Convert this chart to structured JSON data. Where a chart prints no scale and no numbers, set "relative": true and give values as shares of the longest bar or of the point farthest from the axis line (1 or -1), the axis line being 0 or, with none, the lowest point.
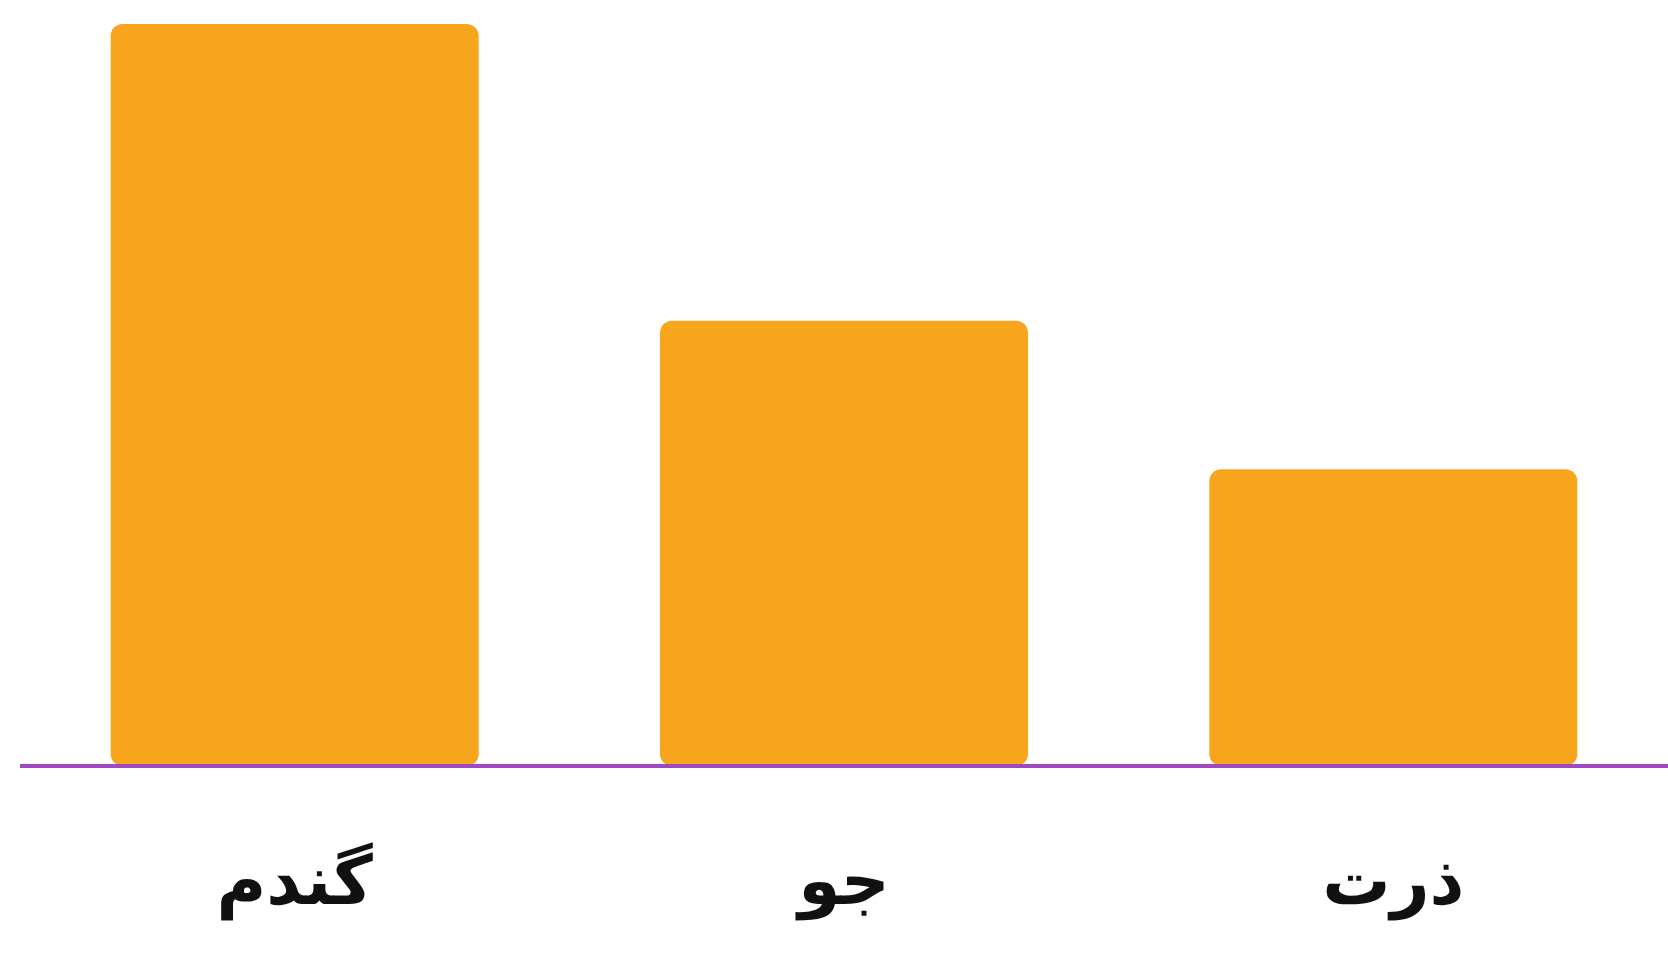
{
  "chart_data": {
    "type": "bar",
    "relative": true,
    "categories": [
      "گندم",
      "جو",
      "ذرت"
    ],
    "values": [
      1,
      0.6,
      0.4
    ],
    "color": "#f7a51c"
  }
}
